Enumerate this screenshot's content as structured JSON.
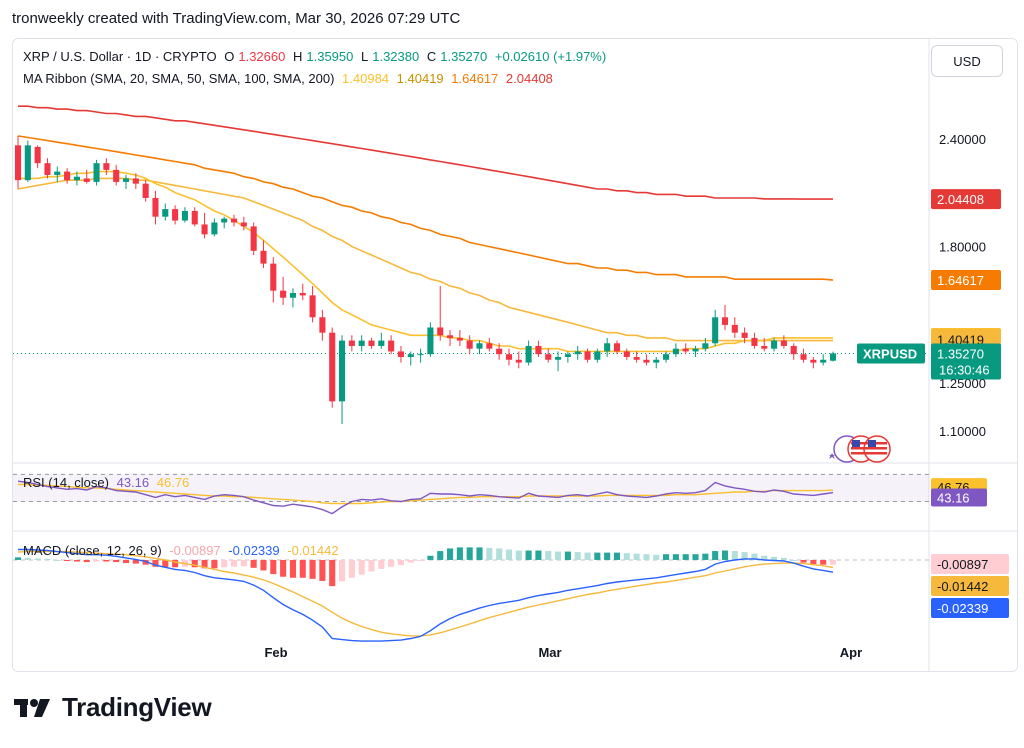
{
  "header": {
    "text": "tronweekly created with TradingView.com, Mar 30, 2026 07:29 UTC"
  },
  "currency_button": "USD",
  "legend": {
    "symbol": "XRP / U.S. Dollar · 1D · CRYPTO",
    "o_label": "O",
    "o": "1.32660",
    "h_label": "H",
    "h": "1.35950",
    "l_label": "L",
    "l": "1.32380",
    "c_label": "C",
    "c": "1.35270",
    "change": "+0.02610 (+1.97%)",
    "ma_title": "MA Ribbon (SMA, 20, SMA, 50, SMA, 100, SMA, 200)",
    "ma_values": [
      "1.40984",
      "1.40419",
      "1.64617",
      "2.04408"
    ],
    "rsi_title": "RSI (14, close)",
    "rsi_values": [
      "43.16",
      "46.76"
    ],
    "macd_title": "MACD (close, 12, 26, 9)",
    "macd_values": [
      "-0.00897",
      "-0.02339",
      "-0.01442"
    ]
  },
  "colors": {
    "up": "#089981",
    "down": "#f23645",
    "sma20": "#fbc02d",
    "sma50": "#f6b93b",
    "sma100": "#f57c00",
    "sma200": "#e53935",
    "rsi": "#7e57c2",
    "rsi_ma": "#fbc02d",
    "macd": "#2962ff",
    "signal": "#f6b93b"
  },
  "footer": {
    "brand": "TradingView"
  },
  "chart_data": {
    "type": "candlestick",
    "title": "XRP / U.S. Dollar · 1D · CRYPTO",
    "price_axis": {
      "ticks": [
        "2.40000",
        "1.80000",
        "1.25000",
        "1.10000"
      ],
      "scale": "log"
    },
    "x_labels": [
      "Feb",
      "Mar",
      "Apr"
    ],
    "price_tags": [
      {
        "label": "2.04408",
        "value": 2.04408,
        "color": "#e53935"
      },
      {
        "label": "1.64617",
        "value": 1.64617,
        "color": "#f57c00"
      },
      {
        "label": "1.40984",
        "value": 1.40984,
        "color": "#fbc02d"
      },
      {
        "label": "1.40419",
        "value": 1.40419,
        "color": "#f6b93b"
      },
      {
        "label": "1.35270",
        "value": 1.3527,
        "color": "#089981",
        "symbol": "XRPUSD",
        "countdown": "16:30:46"
      }
    ],
    "candles": [
      [
        2.36,
        2.42,
        2.1,
        2.15
      ],
      [
        2.15,
        2.39,
        2.14,
        2.36
      ],
      [
        2.35,
        2.36,
        2.22,
        2.25
      ],
      [
        2.25,
        2.28,
        2.16,
        2.18
      ],
      [
        2.18,
        2.23,
        2.14,
        2.2
      ],
      [
        2.2,
        2.22,
        2.13,
        2.15
      ],
      [
        2.15,
        2.2,
        2.12,
        2.17
      ],
      [
        2.16,
        2.21,
        2.13,
        2.14
      ],
      [
        2.14,
        2.27,
        2.12,
        2.25
      ],
      [
        2.25,
        2.28,
        2.18,
        2.21
      ],
      [
        2.21,
        2.24,
        2.12,
        2.14
      ],
      [
        2.14,
        2.18,
        2.1,
        2.16
      ],
      [
        2.16,
        2.19,
        2.1,
        2.13
      ],
      [
        2.13,
        2.15,
        2.03,
        2.05
      ],
      [
        2.05,
        2.09,
        1.91,
        1.95
      ],
      [
        1.95,
        2.02,
        1.93,
        1.99
      ],
      [
        1.99,
        2.01,
        1.91,
        1.93
      ],
      [
        1.93,
        2.0,
        1.92,
        1.98
      ],
      [
        1.98,
        2.0,
        1.9,
        1.91
      ],
      [
        1.91,
        1.97,
        1.84,
        1.86
      ],
      [
        1.86,
        1.94,
        1.85,
        1.92
      ],
      [
        1.92,
        1.95,
        1.89,
        1.94
      ],
      [
        1.94,
        1.96,
        1.9,
        1.92
      ],
      [
        1.92,
        1.95,
        1.88,
        1.9
      ],
      [
        1.9,
        1.92,
        1.76,
        1.78
      ],
      [
        1.78,
        1.83,
        1.7,
        1.72
      ],
      [
        1.72,
        1.75,
        1.55,
        1.6
      ],
      [
        1.6,
        1.66,
        1.54,
        1.57
      ],
      [
        1.57,
        1.61,
        1.53,
        1.59
      ],
      [
        1.59,
        1.63,
        1.56,
        1.58
      ],
      [
        1.58,
        1.62,
        1.47,
        1.49
      ],
      [
        1.49,
        1.52,
        1.4,
        1.43
      ],
      [
        1.43,
        1.45,
        1.17,
        1.19
      ],
      [
        1.19,
        1.42,
        1.12,
        1.4
      ],
      [
        1.4,
        1.42,
        1.36,
        1.38
      ],
      [
        1.38,
        1.42,
        1.36,
        1.4
      ],
      [
        1.4,
        1.41,
        1.37,
        1.38
      ],
      [
        1.38,
        1.43,
        1.37,
        1.4
      ],
      [
        1.4,
        1.42,
        1.35,
        1.36
      ],
      [
        1.36,
        1.38,
        1.32,
        1.34
      ],
      [
        1.34,
        1.36,
        1.31,
        1.35
      ],
      [
        1.35,
        1.37,
        1.32,
        1.35
      ],
      [
        1.35,
        1.47,
        1.34,
        1.45
      ],
      [
        1.45,
        1.62,
        1.4,
        1.42
      ],
      [
        1.42,
        1.44,
        1.38,
        1.41
      ],
      [
        1.41,
        1.44,
        1.38,
        1.4
      ],
      [
        1.4,
        1.42,
        1.35,
        1.37
      ],
      [
        1.37,
        1.4,
        1.35,
        1.39
      ],
      [
        1.39,
        1.41,
        1.36,
        1.37
      ],
      [
        1.37,
        1.39,
        1.33,
        1.35
      ],
      [
        1.35,
        1.37,
        1.31,
        1.33
      ],
      [
        1.33,
        1.36,
        1.3,
        1.32
      ],
      [
        1.32,
        1.4,
        1.31,
        1.38
      ],
      [
        1.38,
        1.4,
        1.34,
        1.35
      ],
      [
        1.35,
        1.37,
        1.32,
        1.33
      ],
      [
        1.33,
        1.36,
        1.29,
        1.34
      ],
      [
        1.34,
        1.36,
        1.32,
        1.35
      ],
      [
        1.35,
        1.38,
        1.33,
        1.36
      ],
      [
        1.36,
        1.37,
        1.32,
        1.33
      ],
      [
        1.33,
        1.37,
        1.32,
        1.36
      ],
      [
        1.36,
        1.41,
        1.34,
        1.39
      ],
      [
        1.39,
        1.4,
        1.35,
        1.36
      ],
      [
        1.36,
        1.37,
        1.33,
        1.34
      ],
      [
        1.34,
        1.36,
        1.32,
        1.33
      ],
      [
        1.33,
        1.35,
        1.31,
        1.32
      ],
      [
        1.32,
        1.34,
        1.3,
        1.33
      ],
      [
        1.33,
        1.36,
        1.32,
        1.35
      ],
      [
        1.35,
        1.39,
        1.34,
        1.37
      ],
      [
        1.37,
        1.39,
        1.35,
        1.36
      ],
      [
        1.36,
        1.38,
        1.34,
        1.37
      ],
      [
        1.37,
        1.41,
        1.36,
        1.39
      ],
      [
        1.39,
        1.52,
        1.38,
        1.49
      ],
      [
        1.49,
        1.54,
        1.44,
        1.46
      ],
      [
        1.46,
        1.49,
        1.41,
        1.43
      ],
      [
        1.43,
        1.45,
        1.39,
        1.41
      ],
      [
        1.41,
        1.43,
        1.37,
        1.38
      ],
      [
        1.38,
        1.41,
        1.36,
        1.37
      ],
      [
        1.37,
        1.41,
        1.36,
        1.4
      ],
      [
        1.4,
        1.42,
        1.37,
        1.38
      ],
      [
        1.38,
        1.39,
        1.33,
        1.35
      ],
      [
        1.35,
        1.37,
        1.32,
        1.33
      ],
      [
        1.33,
        1.34,
        1.3,
        1.32
      ],
      [
        1.32,
        1.35,
        1.31,
        1.33
      ],
      [
        1.3266,
        1.3595,
        1.3238,
        1.3527
      ]
    ],
    "sma20_series": [
      2.16,
      2.16,
      2.16,
      2.17,
      2.17,
      2.18,
      2.19,
      2.19,
      2.2,
      2.2,
      2.2,
      2.19,
      2.18,
      2.16,
      2.13,
      2.11,
      2.08,
      2.06,
      2.04,
      2.01,
      1.98,
      1.96,
      1.93,
      1.9,
      1.87,
      1.83,
      1.79,
      1.75,
      1.71,
      1.67,
      1.63,
      1.59,
      1.55,
      1.52,
      1.5,
      1.48,
      1.46,
      1.45,
      1.44,
      1.43,
      1.42,
      1.42,
      1.42,
      1.42,
      1.41,
      1.41,
      1.4,
      1.4,
      1.39,
      1.38,
      1.38,
      1.37,
      1.37,
      1.37,
      1.37,
      1.37,
      1.36,
      1.36,
      1.36,
      1.36,
      1.36,
      1.36,
      1.36,
      1.36,
      1.36,
      1.36,
      1.36,
      1.36,
      1.37,
      1.37,
      1.37,
      1.38,
      1.39,
      1.39,
      1.4,
      1.4,
      1.4,
      1.41,
      1.41,
      1.41,
      1.41,
      1.41,
      1.41,
      1.41
    ],
    "sma50_series": [
      2.1,
      2.11,
      2.12,
      2.13,
      2.14,
      2.15,
      2.15,
      2.15,
      2.16,
      2.16,
      2.16,
      2.16,
      2.15,
      2.15,
      2.14,
      2.13,
      2.12,
      2.11,
      2.1,
      2.09,
      2.08,
      2.07,
      2.06,
      2.05,
      2.03,
      2.01,
      1.99,
      1.97,
      1.95,
      1.93,
      1.9,
      1.88,
      1.85,
      1.83,
      1.8,
      1.78,
      1.76,
      1.74,
      1.72,
      1.7,
      1.68,
      1.67,
      1.65,
      1.64,
      1.62,
      1.61,
      1.59,
      1.58,
      1.56,
      1.55,
      1.53,
      1.52,
      1.51,
      1.5,
      1.49,
      1.48,
      1.47,
      1.46,
      1.45,
      1.44,
      1.43,
      1.43,
      1.42,
      1.42,
      1.41,
      1.41,
      1.41,
      1.4,
      1.4,
      1.4,
      1.4,
      1.4,
      1.4,
      1.4,
      1.4,
      1.4,
      1.4,
      1.4,
      1.4,
      1.4,
      1.4,
      1.4,
      1.4,
      1.4
    ],
    "sma100_series": [
      2.42,
      2.41,
      2.4,
      2.39,
      2.38,
      2.37,
      2.36,
      2.35,
      2.34,
      2.33,
      2.32,
      2.31,
      2.3,
      2.29,
      2.28,
      2.27,
      2.26,
      2.25,
      2.24,
      2.22,
      2.21,
      2.2,
      2.19,
      2.17,
      2.16,
      2.14,
      2.13,
      2.11,
      2.1,
      2.08,
      2.06,
      2.05,
      2.03,
      2.01,
      2.0,
      1.98,
      1.97,
      1.95,
      1.94,
      1.92,
      1.91,
      1.89,
      1.88,
      1.86,
      1.85,
      1.84,
      1.82,
      1.81,
      1.8,
      1.79,
      1.78,
      1.77,
      1.76,
      1.75,
      1.74,
      1.73,
      1.72,
      1.72,
      1.71,
      1.7,
      1.7,
      1.69,
      1.69,
      1.68,
      1.68,
      1.67,
      1.67,
      1.67,
      1.66,
      1.66,
      1.66,
      1.66,
      1.66,
      1.65,
      1.65,
      1.65,
      1.65,
      1.65,
      1.65,
      1.65,
      1.65,
      1.65,
      1.65,
      1.646
    ],
    "sma200_series": [
      2.62,
      2.62,
      2.61,
      2.61,
      2.6,
      2.6,
      2.59,
      2.59,
      2.58,
      2.57,
      2.57,
      2.56,
      2.55,
      2.55,
      2.54,
      2.53,
      2.52,
      2.52,
      2.51,
      2.5,
      2.49,
      2.48,
      2.47,
      2.46,
      2.45,
      2.44,
      2.43,
      2.42,
      2.41,
      2.4,
      2.39,
      2.38,
      2.37,
      2.36,
      2.35,
      2.34,
      2.33,
      2.32,
      2.31,
      2.3,
      2.29,
      2.28,
      2.27,
      2.26,
      2.25,
      2.24,
      2.23,
      2.22,
      2.21,
      2.2,
      2.19,
      2.18,
      2.17,
      2.16,
      2.15,
      2.14,
      2.13,
      2.12,
      2.11,
      2.1,
      2.1,
      2.09,
      2.09,
      2.08,
      2.08,
      2.07,
      2.07,
      2.07,
      2.06,
      2.06,
      2.06,
      2.05,
      2.05,
      2.05,
      2.05,
      2.05,
      2.045,
      2.045,
      2.045,
      2.045,
      2.044,
      2.044,
      2.044,
      2.044
    ],
    "rsi": {
      "ticks": [
        "46.76",
        "43.16"
      ],
      "rsi_series": [
        60,
        58,
        55,
        52,
        50,
        48,
        49,
        47,
        52,
        50,
        46,
        45,
        44,
        40,
        36,
        40,
        37,
        39,
        36,
        33,
        38,
        40,
        39,
        37,
        32,
        28,
        24,
        23,
        26,
        24,
        22,
        18,
        12,
        22,
        30,
        33,
        32,
        34,
        31,
        30,
        33,
        34,
        42,
        41,
        41,
        40,
        38,
        40,
        39,
        37,
        36,
        35,
        42,
        38,
        37,
        36,
        39,
        40,
        38,
        41,
        44,
        40,
        38,
        37,
        36,
        38,
        41,
        43,
        42,
        43,
        46,
        58,
        53,
        50,
        48,
        45,
        44,
        47,
        45,
        41,
        40,
        39,
        41,
        43.16
      ],
      "rsi_ma_series": [
        55,
        55,
        54,
        54,
        53,
        52,
        51,
        50,
        50,
        49,
        48,
        47,
        46,
        45,
        44,
        43,
        42,
        41,
        40,
        39,
        38,
        38,
        37,
        37,
        36,
        35,
        34,
        33,
        32,
        31,
        30,
        28,
        27,
        27,
        27,
        27,
        28,
        29,
        30,
        30,
        31,
        32,
        33,
        34,
        35,
        36,
        36,
        37,
        37,
        37,
        37,
        37,
        38,
        38,
        38,
        38,
        38,
        38,
        38,
        38,
        39,
        39,
        39,
        39,
        39,
        39,
        39,
        40,
        40,
        40,
        41,
        42,
        43,
        44,
        44,
        45,
        45,
        46,
        46,
        46,
        46,
        46,
        46,
        46.76
      ]
    },
    "macd": {
      "ticks": [
        "-0.00897",
        "-0.01442",
        "-0.02339"
      ],
      "macd_series": [
        0.02,
        0.02,
        0.019,
        0.018,
        0.016,
        0.014,
        0.012,
        0.01,
        0.01,
        0.009,
        0.007,
        0.004,
        0.001,
        -0.003,
        -0.01,
        -0.014,
        -0.018,
        -0.02,
        -0.024,
        -0.03,
        -0.034,
        -0.036,
        -0.038,
        -0.041,
        -0.048,
        -0.058,
        -0.072,
        -0.085,
        -0.095,
        -0.104,
        -0.115,
        -0.128,
        -0.15,
        -0.152,
        -0.154,
        -0.155,
        -0.155,
        -0.155,
        -0.154,
        -0.153,
        -0.15,
        -0.146,
        -0.135,
        -0.122,
        -0.112,
        -0.104,
        -0.098,
        -0.092,
        -0.087,
        -0.083,
        -0.08,
        -0.077,
        -0.072,
        -0.068,
        -0.065,
        -0.062,
        -0.058,
        -0.055,
        -0.052,
        -0.049,
        -0.045,
        -0.042,
        -0.04,
        -0.038,
        -0.036,
        -0.034,
        -0.031,
        -0.028,
        -0.025,
        -0.022,
        -0.018,
        -0.008,
        -0.003,
        0.0,
        0.002,
        0.002,
        0.0,
        -0.001,
        -0.002,
        -0.006,
        -0.012,
        -0.017,
        -0.02,
        -0.02339
      ],
      "signal_series": [
        0.015,
        0.016,
        0.016,
        0.016,
        0.016,
        0.016,
        0.015,
        0.014,
        0.013,
        0.012,
        0.011,
        0.01,
        0.008,
        0.006,
        0.003,
        0.0,
        -0.004,
        -0.007,
        -0.01,
        -0.014,
        -0.018,
        -0.022,
        -0.025,
        -0.029,
        -0.033,
        -0.038,
        -0.045,
        -0.053,
        -0.061,
        -0.07,
        -0.079,
        -0.088,
        -0.1,
        -0.111,
        -0.12,
        -0.127,
        -0.133,
        -0.138,
        -0.141,
        -0.143,
        -0.145,
        -0.145,
        -0.143,
        -0.139,
        -0.134,
        -0.128,
        -0.122,
        -0.116,
        -0.11,
        -0.105,
        -0.1,
        -0.095,
        -0.09,
        -0.086,
        -0.082,
        -0.078,
        -0.074,
        -0.07,
        -0.066,
        -0.063,
        -0.059,
        -0.056,
        -0.053,
        -0.05,
        -0.047,
        -0.044,
        -0.042,
        -0.039,
        -0.036,
        -0.033,
        -0.03,
        -0.025,
        -0.021,
        -0.017,
        -0.013,
        -0.01,
        -0.008,
        -0.007,
        -0.006,
        -0.006,
        -0.007,
        -0.009,
        -0.011,
        -0.01442
      ],
      "histogram_series": [
        0.005,
        0.004,
        0.003,
        0.002,
        0.0,
        -0.002,
        -0.003,
        -0.004,
        -0.003,
        -0.003,
        -0.004,
        -0.006,
        -0.007,
        -0.009,
        -0.013,
        -0.014,
        -0.014,
        -0.013,
        -0.014,
        -0.016,
        -0.016,
        -0.014,
        -0.013,
        -0.012,
        -0.015,
        -0.02,
        -0.027,
        -0.032,
        -0.034,
        -0.034,
        -0.036,
        -0.04,
        -0.05,
        -0.041,
        -0.034,
        -0.028,
        -0.022,
        -0.017,
        -0.013,
        -0.01,
        -0.005,
        -0.001,
        0.008,
        0.017,
        0.022,
        0.024,
        0.024,
        0.024,
        0.023,
        0.022,
        0.02,
        0.018,
        0.018,
        0.018,
        0.017,
        0.016,
        0.016,
        0.015,
        0.014,
        0.014,
        0.014,
        0.014,
        0.013,
        0.012,
        0.011,
        0.01,
        0.011,
        0.011,
        0.011,
        0.011,
        0.012,
        0.017,
        0.018,
        0.017,
        0.015,
        0.012,
        0.008,
        0.006,
        0.004,
        0.0,
        -0.005,
        -0.008,
        -0.009,
        -0.00897
      ]
    }
  }
}
